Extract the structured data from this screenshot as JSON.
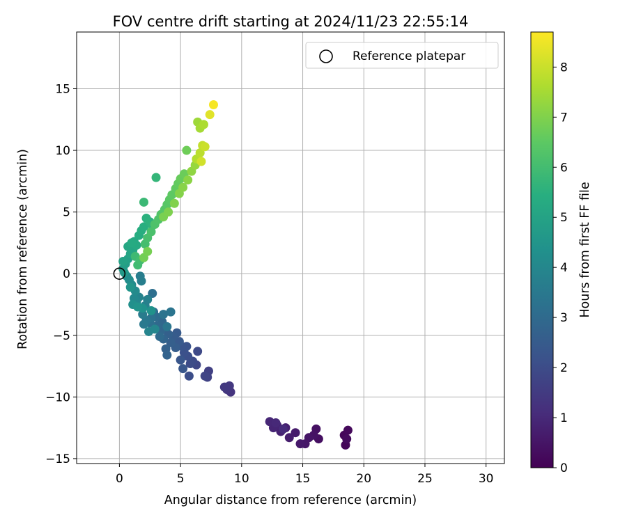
{
  "chart_data": {
    "type": "scatter",
    "title": "FOV centre drift starting at 2024/11/23 22:55:14",
    "xlabel": "Angular distance from reference (arcmin)",
    "ylabel": "Rotation from reference (arcmin)",
    "xlim": [
      -3.5,
      31.5
    ],
    "ylim": [
      -15.4,
      19.6
    ],
    "xticks": [
      0,
      5,
      10,
      15,
      20,
      25,
      30
    ],
    "yticks": [
      -15,
      -10,
      -5,
      0,
      5,
      10,
      15
    ],
    "xtick_labels": [
      "0",
      "5",
      "10",
      "15",
      "20",
      "25",
      "30"
    ],
    "ytick_labels": [
      "−15",
      "−10",
      "−5",
      "0",
      "5",
      "10",
      "15"
    ],
    "grid": true,
    "legend": {
      "placement": "top-right",
      "entries": [
        "Reference platepar"
      ]
    },
    "colorbar": {
      "label": "Hours from first FF file",
      "range": [
        0,
        8.7
      ],
      "ticks": [
        0,
        1,
        2,
        3,
        4,
        5,
        6,
        7,
        8
      ],
      "colormap": "viridis"
    },
    "reference_point": {
      "x": 0,
      "y": 0
    },
    "series": [
      {
        "values_note": "x, y in arcmin; t in hours",
        "points": [
          {
            "x": 18.5,
            "y": -13.9,
            "t": 0.1
          },
          {
            "x": 18.4,
            "y": -13.1,
            "t": 0.15
          },
          {
            "x": 18.7,
            "y": -12.7,
            "t": 0.2
          },
          {
            "x": 18.6,
            "y": -13.4,
            "t": 0.25
          },
          {
            "x": 16.3,
            "y": -13.4,
            "t": 0.35
          },
          {
            "x": 16.1,
            "y": -12.6,
            "t": 0.4
          },
          {
            "x": 15.9,
            "y": -13.1,
            "t": 0.45
          },
          {
            "x": 15.5,
            "y": -13.3,
            "t": 0.5
          },
          {
            "x": 15.2,
            "y": -13.8,
            "t": 0.55
          },
          {
            "x": 14.8,
            "y": -13.8,
            "t": 0.6
          },
          {
            "x": 14.4,
            "y": -12.9,
            "t": 0.65
          },
          {
            "x": 13.9,
            "y": -13.3,
            "t": 0.7
          },
          {
            "x": 13.6,
            "y": -12.5,
            "t": 0.75
          },
          {
            "x": 13.2,
            "y": -12.8,
            "t": 0.8
          },
          {
            "x": 12.9,
            "y": -12.3,
            "t": 0.85
          },
          {
            "x": 12.6,
            "y": -12.5,
            "t": 0.9
          },
          {
            "x": 12.3,
            "y": -12.0,
            "t": 0.95
          },
          {
            "x": 12.8,
            "y": -12.1,
            "t": 1.0
          },
          {
            "x": 13.4,
            "y": -12.6,
            "t": 1.05
          },
          {
            "x": 9.1,
            "y": -9.6,
            "t": 1.3
          },
          {
            "x": 8.8,
            "y": -9.4,
            "t": 1.35
          },
          {
            "x": 9.0,
            "y": -9.1,
            "t": 1.4
          },
          {
            "x": 8.6,
            "y": -9.2,
            "t": 1.45
          },
          {
            "x": 7.3,
            "y": -7.9,
            "t": 1.65
          },
          {
            "x": 7.2,
            "y": -8.4,
            "t": 1.7
          },
          {
            "x": 7.0,
            "y": -8.3,
            "t": 1.75
          },
          {
            "x": 6.3,
            "y": -7.4,
            "t": 1.85
          },
          {
            "x": 6.4,
            "y": -6.3,
            "t": 1.9
          },
          {
            "x": 6.0,
            "y": -7.1,
            "t": 1.95
          },
          {
            "x": 5.8,
            "y": -7.3,
            "t": 2.0
          },
          {
            "x": 5.7,
            "y": -8.3,
            "t": 2.05
          },
          {
            "x": 5.6,
            "y": -6.7,
            "t": 2.1
          },
          {
            "x": 5.3,
            "y": -6.4,
            "t": 2.15
          },
          {
            "x": 5.5,
            "y": -5.9,
            "t": 2.2
          },
          {
            "x": 5.1,
            "y": -5.9,
            "t": 2.25
          },
          {
            "x": 5.0,
            "y": -7.0,
            "t": 2.3
          },
          {
            "x": 5.2,
            "y": -7.7,
            "t": 2.35
          },
          {
            "x": 4.9,
            "y": -5.5,
            "t": 2.4
          },
          {
            "x": 4.7,
            "y": -4.8,
            "t": 2.45
          },
          {
            "x": 4.4,
            "y": -5.1,
            "t": 2.5
          },
          {
            "x": 4.6,
            "y": -6.0,
            "t": 2.55
          },
          {
            "x": 4.2,
            "y": -5.6,
            "t": 2.6
          },
          {
            "x": 4.0,
            "y": -4.9,
            "t": 2.65
          },
          {
            "x": 3.8,
            "y": -6.1,
            "t": 2.7
          },
          {
            "x": 3.9,
            "y": -6.6,
            "t": 2.75
          },
          {
            "x": 3.6,
            "y": -5.3,
            "t": 2.8
          },
          {
            "x": 3.4,
            "y": -4.6,
            "t": 2.85
          },
          {
            "x": 3.5,
            "y": -3.9,
            "t": 2.9
          },
          {
            "x": 3.1,
            "y": -4.2,
            "t": 2.95
          },
          {
            "x": 3.3,
            "y": -5.1,
            "t": 3.0
          },
          {
            "x": 3.0,
            "y": -3.5,
            "t": 3.05
          },
          {
            "x": 2.8,
            "y": -3.1,
            "t": 3.1
          },
          {
            "x": 2.7,
            "y": -1.6,
            "t": 3.15
          },
          {
            "x": 2.5,
            "y": -4.0,
            "t": 3.2
          },
          {
            "x": 2.6,
            "y": -3.6,
            "t": 3.25
          },
          {
            "x": 3.6,
            "y": -3.3,
            "t": 3.3
          },
          {
            "x": 4.2,
            "y": -3.1,
            "t": 3.35
          },
          {
            "x": 3.9,
            "y": -4.3,
            "t": 3.4
          },
          {
            "x": 2.2,
            "y": -3.8,
            "t": 3.45
          },
          {
            "x": 2.0,
            "y": -4.1,
            "t": 3.5
          },
          {
            "x": 1.9,
            "y": -3.3,
            "t": 3.6
          },
          {
            "x": 1.7,
            "y": -0.2,
            "t": 3.65
          },
          {
            "x": 1.8,
            "y": -0.6,
            "t": 3.7
          },
          {
            "x": 2.1,
            "y": -2.6,
            "t": 3.75
          },
          {
            "x": 2.3,
            "y": -2.1,
            "t": 3.8
          },
          {
            "x": 1.6,
            "y": -1.9,
            "t": 3.85
          },
          {
            "x": 2.4,
            "y": -4.7,
            "t": 3.9
          },
          {
            "x": 2.9,
            "y": -4.5,
            "t": 3.95
          },
          {
            "x": 1.4,
            "y": -2.3,
            "t": 4.0
          },
          {
            "x": 1.2,
            "y": -2.0,
            "t": 4.05
          },
          {
            "x": 1.3,
            "y": -1.4,
            "t": 4.1
          },
          {
            "x": 1.0,
            "y": -0.9,
            "t": 4.15
          },
          {
            "x": 0.8,
            "y": -0.5,
            "t": 4.2
          },
          {
            "x": 0.6,
            "y": -0.2,
            "t": 4.25
          },
          {
            "x": 1.1,
            "y": -2.5,
            "t": 4.3
          },
          {
            "x": 1.9,
            "y": -2.8,
            "t": 4.35
          },
          {
            "x": 2.6,
            "y": -3.0,
            "t": 4.4
          },
          {
            "x": 1.5,
            "y": -2.7,
            "t": 4.45
          },
          {
            "x": 0.9,
            "y": -1.1,
            "t": 4.5
          },
          {
            "x": 0.4,
            "y": 0.1,
            "t": 4.6
          },
          {
            "x": 0.3,
            "y": 0.4,
            "t": 4.7
          },
          {
            "x": 0.5,
            "y": 0.8,
            "t": 4.8
          },
          {
            "x": 0.7,
            "y": 1.2,
            "t": 4.9
          },
          {
            "x": 0.3,
            "y": 1.0,
            "t": 5.0
          },
          {
            "x": 0.9,
            "y": 1.6,
            "t": 5.05
          },
          {
            "x": 1.1,
            "y": 1.9,
            "t": 5.1
          },
          {
            "x": 0.7,
            "y": 2.2,
            "t": 5.15
          },
          {
            "x": 1.2,
            "y": 2.6,
            "t": 5.2
          },
          {
            "x": 1.4,
            "y": 2.3,
            "t": 5.25
          },
          {
            "x": 1.0,
            "y": 2.5,
            "t": 5.3
          },
          {
            "x": 1.6,
            "y": 3.1,
            "t": 5.35
          },
          {
            "x": 1.8,
            "y": 3.5,
            "t": 5.4
          },
          {
            "x": 2.0,
            "y": 3.8,
            "t": 5.45
          },
          {
            "x": 2.2,
            "y": 4.5,
            "t": 5.5
          },
          {
            "x": 2.5,
            "y": 4.2,
            "t": 5.55
          },
          {
            "x": 2.7,
            "y": 3.9,
            "t": 5.6
          },
          {
            "x": 3.0,
            "y": 7.8,
            "t": 5.7
          },
          {
            "x": 2.0,
            "y": 5.8,
            "t": 5.85
          },
          {
            "x": 1.3,
            "y": 1.4,
            "t": 5.9
          },
          {
            "x": 1.5,
            "y": 0.7,
            "t": 5.95
          },
          {
            "x": 1.7,
            "y": 1.1,
            "t": 6.0
          },
          {
            "x": 2.1,
            "y": 2.4,
            "t": 6.05
          },
          {
            "x": 2.3,
            "y": 2.9,
            "t": 6.1
          },
          {
            "x": 2.6,
            "y": 3.4,
            "t": 6.15
          },
          {
            "x": 2.9,
            "y": 4.0,
            "t": 6.2
          },
          {
            "x": 3.2,
            "y": 4.4,
            "t": 6.25
          },
          {
            "x": 3.4,
            "y": 4.8,
            "t": 6.3
          },
          {
            "x": 3.7,
            "y": 5.2,
            "t": 6.35
          },
          {
            "x": 3.9,
            "y": 5.6,
            "t": 6.4
          },
          {
            "x": 4.1,
            "y": 6.0,
            "t": 6.45
          },
          {
            "x": 4.3,
            "y": 6.4,
            "t": 6.5
          },
          {
            "x": 4.6,
            "y": 6.9,
            "t": 6.55
          },
          {
            "x": 4.8,
            "y": 7.3,
            "t": 6.6
          },
          {
            "x": 5.0,
            "y": 7.7,
            "t": 6.65
          },
          {
            "x": 5.3,
            "y": 8.1,
            "t": 6.7
          },
          {
            "x": 5.5,
            "y": 10.0,
            "t": 6.75
          },
          {
            "x": 2.0,
            "y": 1.3,
            "t": 6.8
          },
          {
            "x": 2.3,
            "y": 1.8,
            "t": 6.85
          },
          {
            "x": 3.6,
            "y": 4.6,
            "t": 6.9
          },
          {
            "x": 4.0,
            "y": 5.0,
            "t": 6.95
          },
          {
            "x": 4.5,
            "y": 5.7,
            "t": 7.0
          },
          {
            "x": 4.9,
            "y": 6.5,
            "t": 7.05
          },
          {
            "x": 5.2,
            "y": 7.0,
            "t": 7.1
          },
          {
            "x": 5.6,
            "y": 7.6,
            "t": 7.15
          },
          {
            "x": 5.9,
            "y": 8.3,
            "t": 7.2
          },
          {
            "x": 6.2,
            "y": 8.8,
            "t": 7.3
          },
          {
            "x": 6.4,
            "y": 12.3,
            "t": 7.4
          },
          {
            "x": 6.6,
            "y": 11.8,
            "t": 7.5
          },
          {
            "x": 6.9,
            "y": 12.1,
            "t": 7.6
          },
          {
            "x": 6.3,
            "y": 9.3,
            "t": 7.7
          },
          {
            "x": 6.6,
            "y": 9.8,
            "t": 7.8
          },
          {
            "x": 6.8,
            "y": 10.4,
            "t": 7.9
          },
          {
            "x": 7.0,
            "y": 10.3,
            "t": 8.0
          },
          {
            "x": 6.7,
            "y": 9.1,
            "t": 8.1
          },
          {
            "x": 7.4,
            "y": 12.9,
            "t": 8.3
          },
          {
            "x": 7.7,
            "y": 13.7,
            "t": 8.6
          }
        ]
      }
    ]
  }
}
